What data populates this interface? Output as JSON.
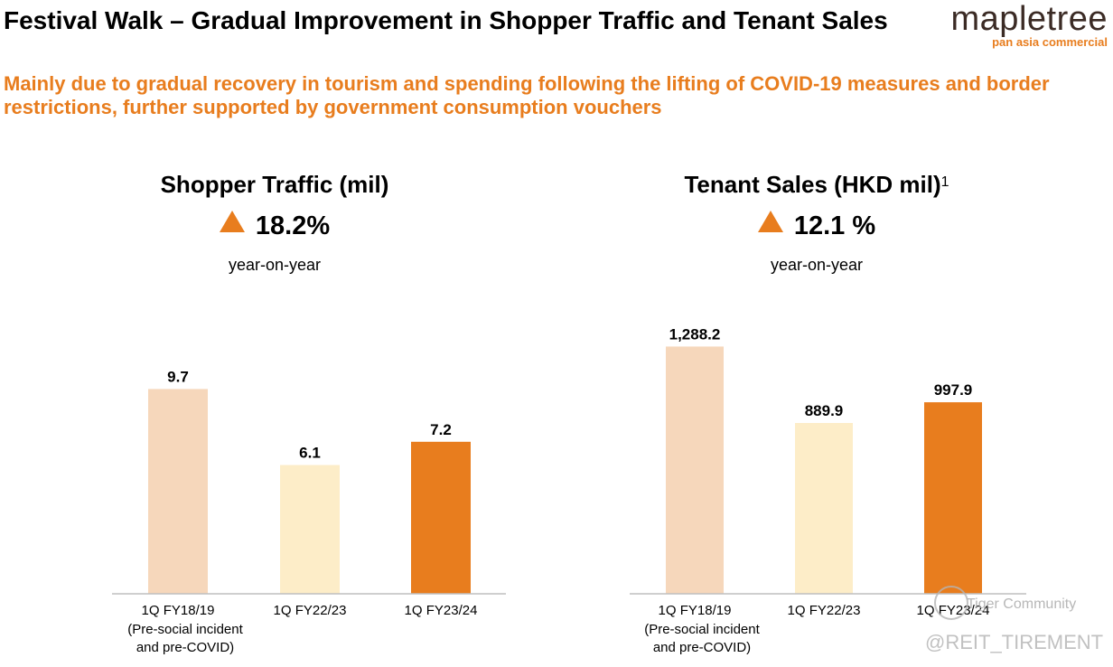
{
  "header": {
    "title": "Festival Walk – Gradual Improvement in Shopper Traffic and Tenant Sales",
    "subtitle": "Mainly due to gradual recovery in tourism and spending following the lifting of COVID-19 measures and border restrictions, further supported by government consumption vouchers"
  },
  "logo": {
    "word": "mapletree",
    "tagline": "pan asia commercial"
  },
  "colors": {
    "accent": "#e87d1e",
    "bar_light": "#f6d7bb",
    "bar_cream": "#fdedc8",
    "bar_orange": "#e87d1e",
    "axis": "#bfbfbf"
  },
  "chart_data": [
    {
      "type": "bar",
      "title": "Shopper Traffic (mil)",
      "change_text": "18.2%",
      "change_direction": "up",
      "change_label": "year-on-year",
      "categories": [
        "1Q FY18/19",
        "1Q FY22/23",
        "1Q FY23/24"
      ],
      "category_notes": [
        "(Pre-social incident",
        "and pre-COVID)"
      ],
      "values": [
        9.7,
        6.1,
        7.2
      ],
      "value_labels": [
        "9.7",
        "6.1",
        "7.2"
      ],
      "ylim": [
        0,
        12.5
      ]
    },
    {
      "type": "bar",
      "title": "Tenant Sales (HKD mil)",
      "title_footnote": "1",
      "change_text": "12.1 %",
      "change_direction": "up",
      "change_label": "year-on-year",
      "categories": [
        "1Q FY18/19",
        "1Q FY22/23",
        "1Q FY23/24"
      ],
      "category_notes": [
        "(Pre-social incident",
        "and pre-COVID)"
      ],
      "values": [
        1288.2,
        889.9,
        997.9
      ],
      "value_labels": [
        "1,288.2",
        "889.9",
        "997.9"
      ],
      "ylim": [
        0,
        1375
      ]
    }
  ],
  "watermark": {
    "community": "Tiger Community",
    "handle": "@REIT_TIREMENT"
  }
}
